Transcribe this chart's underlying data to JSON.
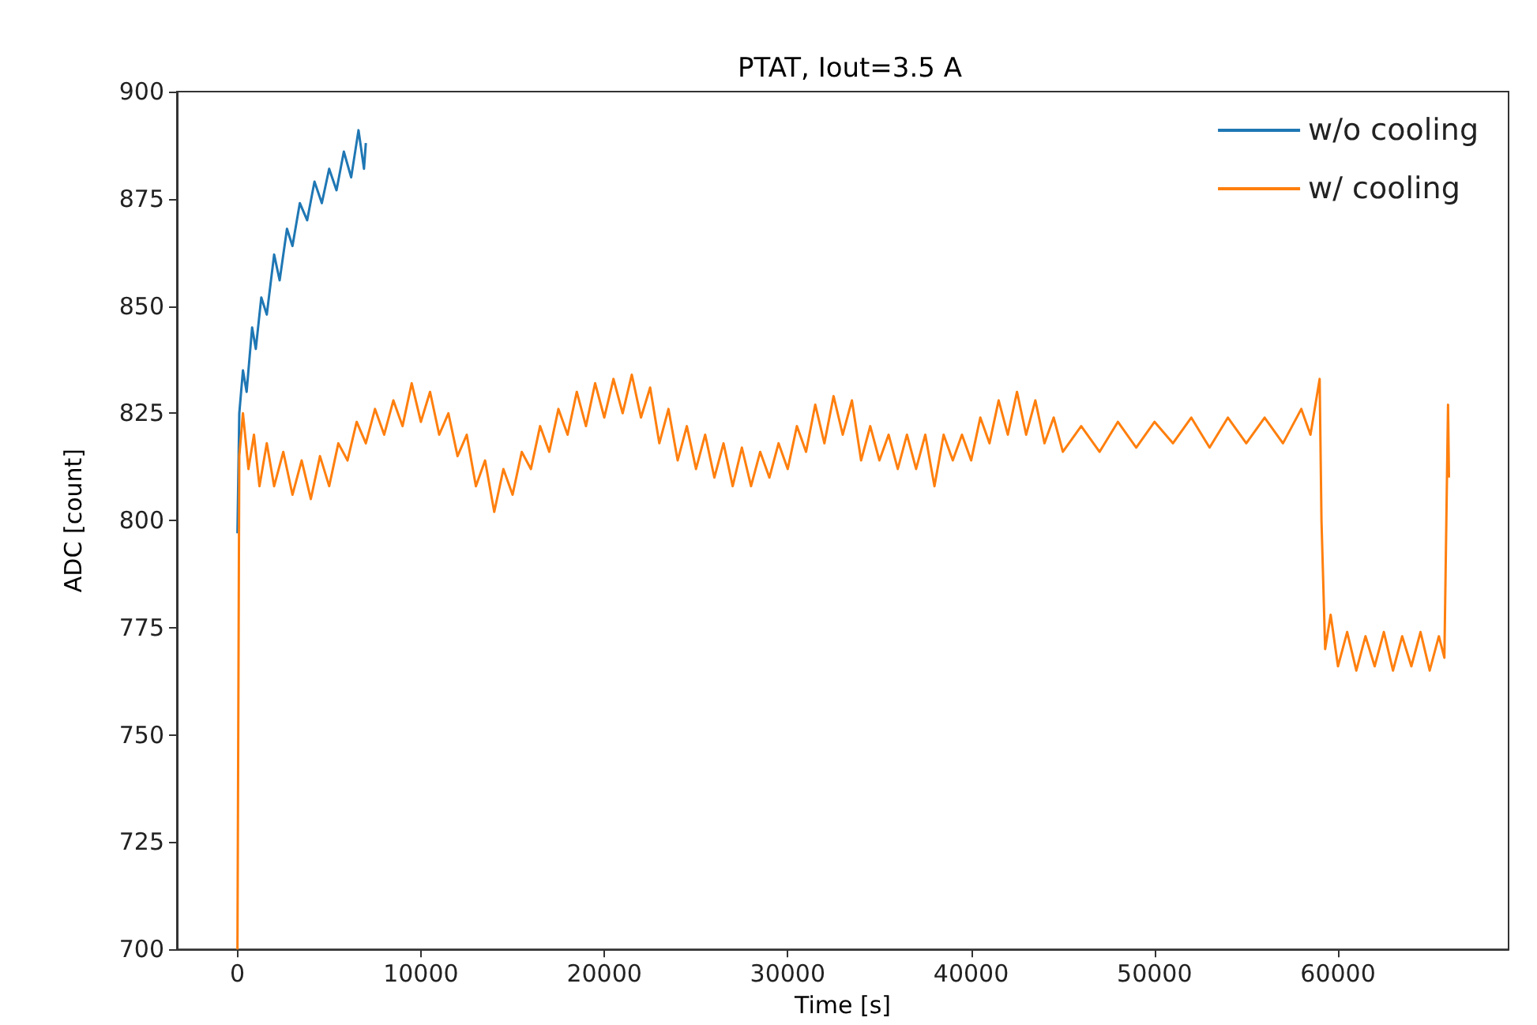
{
  "chart_data": {
    "type": "line",
    "title": "PTAT, Iout=3.5 A",
    "xlabel": "Time [s]",
    "ylabel": "ADC [count]",
    "xlim": [
      -3300,
      69300
    ],
    "xticks": [
      0,
      10000,
      20000,
      30000,
      40000,
      50000,
      60000
    ],
    "ylim": [
      700,
      900
    ],
    "yticks": [
      700,
      725,
      750,
      775,
      800,
      825,
      850,
      875,
      900
    ],
    "grid": false,
    "legend": "top right",
    "series": [
      {
        "name": "w/o cooling",
        "color": "#1f77b4",
        "x": [
          0,
          100,
          300,
          500,
          800,
          1000,
          1300,
          1600,
          2000,
          2300,
          2700,
          3000,
          3400,
          3800,
          4200,
          4600,
          5000,
          5400,
          5800,
          6200,
          6600,
          6900,
          7000
        ],
        "values": [
          797,
          825,
          835,
          830,
          845,
          840,
          852,
          848,
          862,
          856,
          868,
          864,
          874,
          870,
          879,
          874,
          882,
          877,
          886,
          880,
          891,
          882,
          888
        ]
      },
      {
        "name": "w/ cooling",
        "color": "#ff7f0e",
        "x": [
          0,
          100,
          300,
          600,
          900,
          1200,
          1600,
          2000,
          2500,
          3000,
          3500,
          4000,
          4500,
          5000,
          5500,
          6000,
          6500,
          7000,
          7500,
          8000,
          8500,
          9000,
          9500,
          10000,
          10500,
          11000,
          11500,
          12000,
          12500,
          13000,
          13500,
          14000,
          14500,
          15000,
          15500,
          16000,
          16500,
          17000,
          17500,
          18000,
          18500,
          19000,
          19500,
          20000,
          20500,
          21000,
          21500,
          22000,
          22500,
          23000,
          23500,
          24000,
          24500,
          25000,
          25500,
          26000,
          26500,
          27000,
          27500,
          28000,
          28500,
          29000,
          29500,
          30000,
          30500,
          31000,
          31500,
          32000,
          32500,
          33000,
          33500,
          34000,
          34500,
          35000,
          35500,
          36000,
          36500,
          37000,
          37500,
          38000,
          38500,
          39000,
          39500,
          40000,
          40500,
          41000,
          41500,
          42000,
          42500,
          43000,
          43500,
          44000,
          44500,
          45000,
          46000,
          47000,
          48000,
          49000,
          50000,
          51000,
          52000,
          53000,
          54000,
          55000,
          56000,
          57000,
          58000,
          58500,
          59000,
          59100,
          59300,
          59600,
          60000,
          60500,
          61000,
          61500,
          62000,
          62500,
          63000,
          63500,
          64000,
          64500,
          65000,
          65500,
          65800,
          66000,
          66050
        ],
        "values": [
          700,
          815,
          825,
          812,
          820,
          808,
          818,
          808,
          816,
          806,
          814,
          805,
          815,
          808,
          818,
          814,
          823,
          818,
          826,
          820,
          828,
          822,
          832,
          823,
          830,
          820,
          825,
          815,
          820,
          808,
          814,
          802,
          812,
          806,
          816,
          812,
          822,
          816,
          826,
          820,
          830,
          822,
          832,
          824,
          833,
          825,
          834,
          824,
          831,
          818,
          826,
          814,
          822,
          812,
          820,
          810,
          818,
          808,
          817,
          808,
          816,
          810,
          818,
          812,
          822,
          816,
          827,
          818,
          829,
          820,
          828,
          814,
          822,
          814,
          820,
          812,
          820,
          812,
          820,
          808,
          820,
          814,
          820,
          814,
          824,
          818,
          828,
          820,
          830,
          820,
          828,
          818,
          824,
          816,
          822,
          816,
          823,
          817,
          823,
          818,
          824,
          817,
          824,
          818,
          824,
          818,
          826,
          820,
          833,
          800,
          770,
          778,
          766,
          774,
          765,
          773,
          766,
          774,
          765,
          773,
          766,
          774,
          765,
          773,
          768,
          827,
          810
        ]
      }
    ]
  }
}
